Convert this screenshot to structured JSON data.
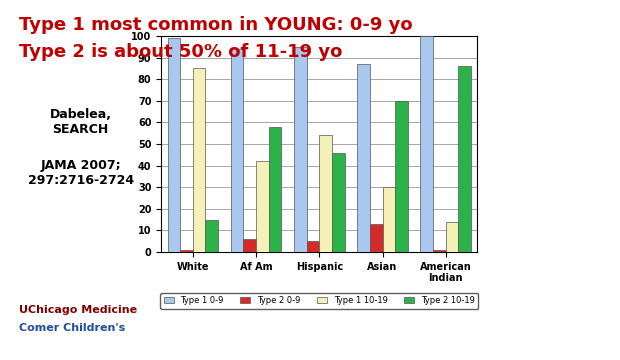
{
  "chart_data": {
    "type": "bar",
    "title": "Type 1 most common in YOUNG: 0-9 yo",
    "subtitle": "Type 2 is about 50% of 11-19 yo",
    "categories": [
      "White",
      "Af Am",
      "Hispanic",
      "Asian",
      "American Indian"
    ],
    "series": [
      {
        "name": "Type 1 0-9",
        "color": "#a9c8f0",
        "values": [
          99,
          94,
          95,
          87,
          100
        ]
      },
      {
        "name": "Type 2 0-9",
        "color": "#d42a2a",
        "values": [
          1,
          6,
          5,
          13,
          1
        ]
      },
      {
        "name": "Type 1 10-19",
        "color": "#f5f0b8",
        "values": [
          85,
          42,
          54,
          30,
          14
        ]
      },
      {
        "name": "Type 2 10-19",
        "color": "#2bb34a",
        "values": [
          15,
          58,
          46,
          70,
          86
        ]
      }
    ],
    "ylim": [
      0,
      100
    ],
    "yticks": [
      0,
      10,
      20,
      30,
      40,
      50,
      60,
      70,
      80,
      90,
      100
    ],
    "grid": true,
    "legend": "bottom",
    "annotations": [
      "Dabelea,\nSEARCH",
      "JAMA 2007;\n297:2716-2724",
      "UChicago Medicine",
      "Comer Children's"
    ]
  }
}
